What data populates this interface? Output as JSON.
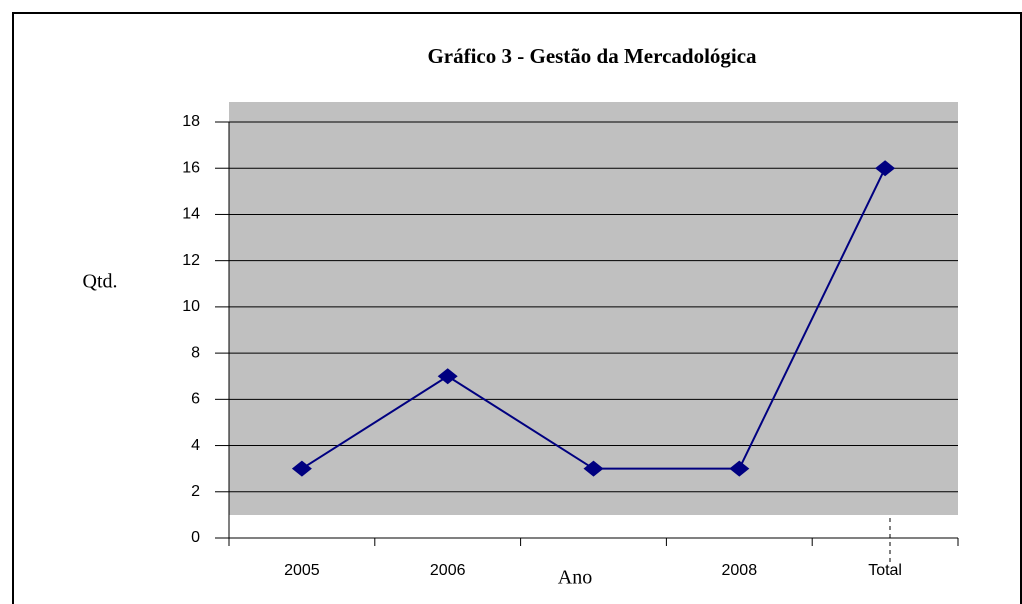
{
  "chart_data": {
    "type": "line",
    "title": "Gráfico 3 - Gestão da Mercadológica",
    "x_label": "Ano",
    "y_label": "Qtd.",
    "categories": [
      "2005",
      "2006",
      null,
      "2008",
      "Total"
    ],
    "series": [
      {
        "name": "Qtd.",
        "color": "#000080",
        "values": [
          3,
          7,
          3,
          3,
          16
        ]
      }
    ],
    "ylim": [
      0,
      18
    ],
    "yticks": [
      0,
      2,
      4,
      6,
      8,
      10,
      12,
      14,
      16,
      18
    ],
    "grid": true
  }
}
